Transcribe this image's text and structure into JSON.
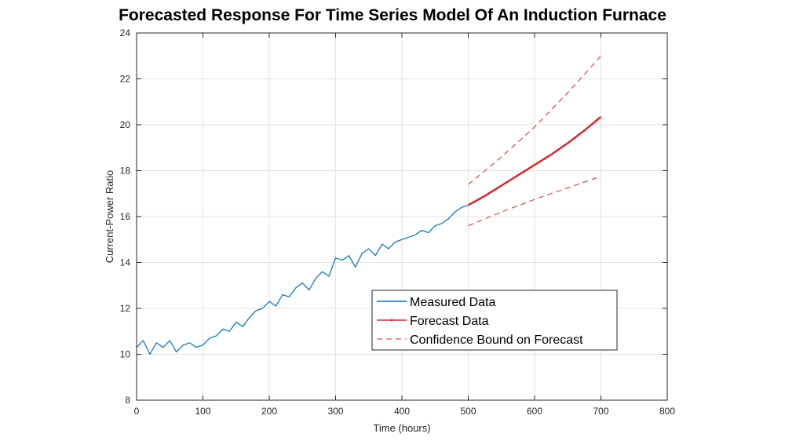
{
  "chart_data": {
    "type": "line",
    "title": "Forecasted Response For Time Series Model Of An Induction Furnace",
    "xlabel": "Time (hours)",
    "ylabel": "Current-Power Ratio",
    "xlim": [
      0,
      800
    ],
    "ylim": [
      8,
      24
    ],
    "xticks": [
      0,
      100,
      200,
      300,
      400,
      500,
      600,
      700,
      800
    ],
    "yticks": [
      8,
      10,
      12,
      14,
      16,
      18,
      20,
      22,
      24
    ],
    "grid": true,
    "legend_position": "bottom-right",
    "series": [
      {
        "name": "Measured Data",
        "color": "#0072BD",
        "style": "solid",
        "x": [
          0,
          10,
          20,
          30,
          40,
          50,
          60,
          70,
          80,
          90,
          100,
          110,
          120,
          130,
          140,
          150,
          160,
          170,
          180,
          190,
          200,
          210,
          220,
          230,
          240,
          250,
          260,
          270,
          280,
          290,
          300,
          310,
          320,
          330,
          340,
          350,
          360,
          370,
          380,
          390,
          400,
          410,
          420,
          430,
          440,
          450,
          460,
          470,
          480,
          490,
          500
        ],
        "y": [
          10.3,
          10.6,
          10.0,
          10.5,
          10.3,
          10.6,
          10.1,
          10.4,
          10.5,
          10.3,
          10.4,
          10.7,
          10.8,
          11.1,
          11.0,
          11.4,
          11.2,
          11.6,
          11.9,
          12.0,
          12.3,
          12.1,
          12.6,
          12.5,
          12.9,
          13.1,
          12.8,
          13.3,
          13.6,
          13.4,
          14.2,
          14.1,
          14.3,
          13.8,
          14.4,
          14.6,
          14.3,
          14.8,
          14.6,
          14.9,
          15.0,
          15.1,
          15.2,
          15.4,
          15.3,
          15.6,
          15.7,
          15.9,
          16.2,
          16.4,
          16.5
        ]
      },
      {
        "name": "Forecast Data",
        "color": "#D62728",
        "style": "solid",
        "x": [
          500,
          525,
          550,
          575,
          600,
          625,
          650,
          675,
          700
        ],
        "y": [
          16.5,
          16.9,
          17.35,
          17.8,
          18.25,
          18.7,
          19.2,
          19.75,
          20.35
        ]
      },
      {
        "name": "Confidence Bound on Forecast",
        "color": "#D62728",
        "style": "dashed",
        "x": [
          500,
          550,
          600,
          650,
          700
        ],
        "y": [
          17.4,
          18.6,
          19.9,
          21.4,
          23.0
        ]
      },
      {
        "color": "#D62728",
        "style": "dashed",
        "x": [
          500,
          550,
          600,
          650,
          700
        ],
        "y": [
          15.6,
          16.2,
          16.75,
          17.25,
          17.75
        ]
      }
    ]
  }
}
